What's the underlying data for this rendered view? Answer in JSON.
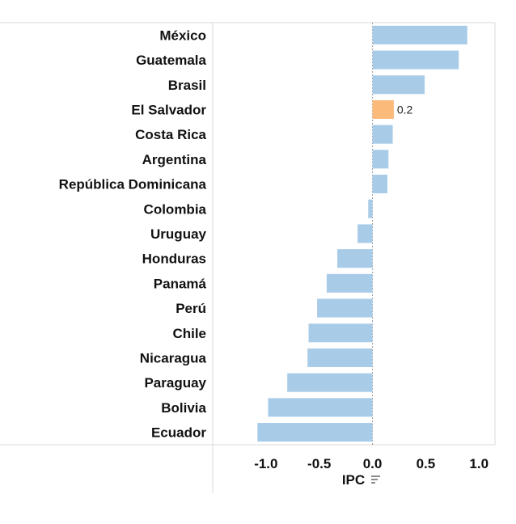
{
  "chart_data": {
    "type": "bar",
    "orientation": "horizontal",
    "categories": [
      "México",
      "Guatemala",
      "Brasil",
      "El Salvador",
      "Costa Rica",
      "Argentina",
      "República Dominicana",
      "Colombia",
      "Uruguay",
      "Honduras",
      "Panamá",
      "Perú",
      "Chile",
      "Nicaragua",
      "Paraguay",
      "Bolivia",
      "Ecuador"
    ],
    "values": [
      0.89,
      0.81,
      0.49,
      0.2,
      0.19,
      0.15,
      0.14,
      -0.04,
      -0.14,
      -0.33,
      -0.43,
      -0.52,
      -0.6,
      -0.61,
      -0.8,
      -0.98,
      -1.08
    ],
    "highlight": {
      "category": "El Salvador",
      "label": "0.2"
    },
    "colors": {
      "bar": "#a8cbe8",
      "highlight": "#fbb97a"
    },
    "xlabel": "IPC",
    "xticks": [
      "-1.0",
      "-0.5",
      "0.0",
      "0.5",
      "1.0"
    ],
    "xtick_values": [
      -1.0,
      -0.5,
      0.0,
      0.5,
      1.0
    ],
    "xlim": [
      -1.5,
      1.15
    ],
    "sort_icon": "sort-descending-icon"
  }
}
